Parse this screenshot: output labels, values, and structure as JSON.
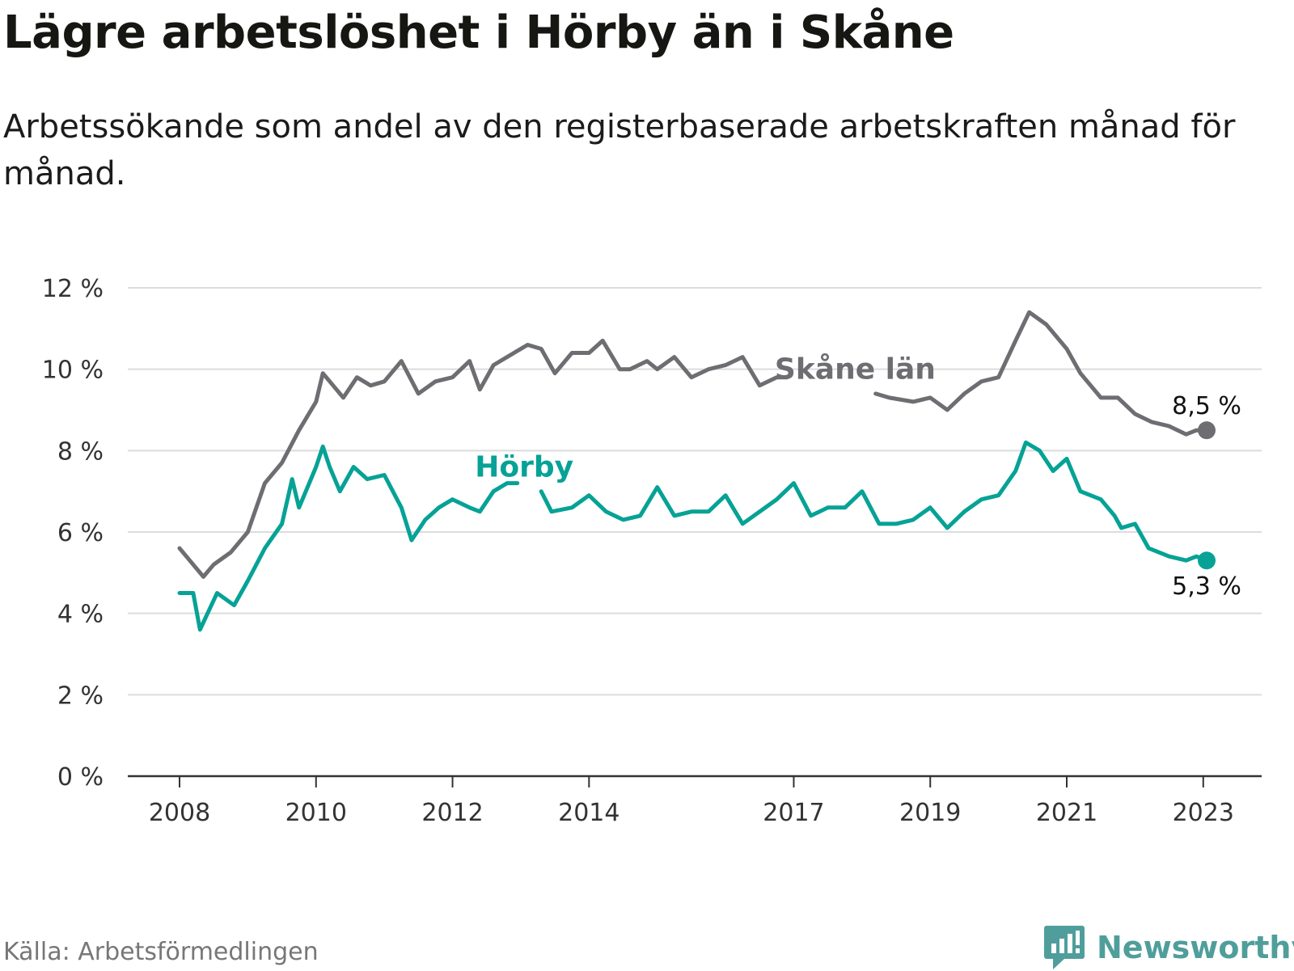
{
  "title": "Lägre arbetslöshet i Hörby än i Skåne",
  "subtitle": "Arbetssökande som andel av den registerbaserade arbetskraften månad för månad.",
  "source": "Källa: Arbetsförmedlingen",
  "brand": {
    "name": "Newsworthy",
    "icon": "newsworthy-logo-icon",
    "color": "#4f9e9b"
  },
  "chart_data": {
    "type": "line",
    "title": "Lägre arbetslöshet i Hörby än i Skåne",
    "xlabel": "",
    "ylabel": "",
    "xlim": [
      2008,
      2023.5
    ],
    "ylim": [
      0,
      12
    ],
    "yticks": [
      0,
      2,
      4,
      6,
      8,
      10,
      12
    ],
    "ytick_labels": [
      "0 %",
      "2 %",
      "4 %",
      "6 %",
      "8 %",
      "10 %",
      "12 %"
    ],
    "xticks": [
      2008,
      2010,
      2012,
      2014,
      2017,
      2019,
      2021,
      2023
    ],
    "xtick_labels": [
      "2008",
      "2010",
      "2012",
      "2014",
      "2017",
      "2019",
      "2021",
      "2023"
    ],
    "grid": true,
    "series": [
      {
        "name": "Skåne län",
        "color": "#6e6d72",
        "gap_after_index": 9,
        "points": [
          [
            2008.0,
            5.6
          ],
          [
            2008.2,
            5.2
          ],
          [
            2008.35,
            4.9
          ],
          [
            2008.5,
            5.2
          ],
          [
            2008.75,
            5.5
          ],
          [
            2009.0,
            6.0
          ],
          [
            2009.25,
            7.2
          ],
          [
            2009.5,
            7.7
          ],
          [
            2009.75,
            8.5
          ],
          [
            2010.0,
            9.2
          ],
          [
            2010.1,
            9.9
          ],
          [
            2010.25,
            9.6
          ],
          [
            2010.4,
            9.3
          ],
          [
            2010.6,
            9.8
          ],
          [
            2010.8,
            9.6
          ],
          [
            2011.0,
            9.7
          ],
          [
            2011.25,
            10.2
          ],
          [
            2011.5,
            9.4
          ],
          [
            2011.75,
            9.7
          ],
          [
            2012.0,
            9.8
          ],
          [
            2012.25,
            10.2
          ],
          [
            2012.4,
            9.5
          ],
          [
            2012.6,
            10.1
          ],
          [
            2012.9,
            10.4
          ],
          [
            2013.1,
            10.6
          ],
          [
            2013.3,
            10.5
          ],
          [
            2013.5,
            9.9
          ],
          [
            2013.75,
            10.4
          ],
          [
            2014.0,
            10.4
          ],
          [
            2014.2,
            10.7
          ],
          [
            2014.45,
            10.0
          ],
          [
            2014.6,
            10.0
          ],
          [
            2014.85,
            10.2
          ],
          [
            2015.0,
            10.0
          ],
          [
            2015.25,
            10.3
          ],
          [
            2015.5,
            9.8
          ],
          [
            2015.75,
            10.0
          ],
          [
            2016.0,
            10.1
          ],
          [
            2016.25,
            10.3
          ],
          [
            2016.5,
            9.6
          ],
          [
            2016.75,
            9.8
          ],
          [
            2016.9,
            9.8
          ],
          [
            2018.2,
            9.4
          ],
          [
            2018.4,
            9.3
          ],
          [
            2018.75,
            9.2
          ],
          [
            2019.0,
            9.3
          ],
          [
            2019.25,
            9.0
          ],
          [
            2019.5,
            9.4
          ],
          [
            2019.75,
            9.7
          ],
          [
            2020.0,
            9.8
          ],
          [
            2020.25,
            10.7
          ],
          [
            2020.45,
            11.4
          ],
          [
            2020.7,
            11.1
          ],
          [
            2021.0,
            10.5
          ],
          [
            2021.2,
            9.9
          ],
          [
            2021.5,
            9.3
          ],
          [
            2021.75,
            9.3
          ],
          [
            2022.0,
            8.9
          ],
          [
            2022.25,
            8.7
          ],
          [
            2022.5,
            8.6
          ],
          [
            2022.75,
            8.4
          ],
          [
            2022.9,
            8.5
          ],
          [
            2023.05,
            8.5
          ]
        ]
      },
      {
        "name": "Hörby",
        "color": "#06a296",
        "gap_after_index": 9,
        "points": [
          [
            2008.0,
            4.5
          ],
          [
            2008.2,
            4.5
          ],
          [
            2008.3,
            3.6
          ],
          [
            2008.55,
            4.5
          ],
          [
            2008.8,
            4.2
          ],
          [
            2009.0,
            4.8
          ],
          [
            2009.25,
            5.6
          ],
          [
            2009.5,
            6.2
          ],
          [
            2009.65,
            7.3
          ],
          [
            2009.75,
            6.6
          ],
          [
            2010.0,
            7.6
          ],
          [
            2010.1,
            8.1
          ],
          [
            2010.2,
            7.6
          ],
          [
            2010.35,
            7.0
          ],
          [
            2010.55,
            7.6
          ],
          [
            2010.75,
            7.3
          ],
          [
            2011.0,
            7.4
          ],
          [
            2011.25,
            6.6
          ],
          [
            2011.4,
            5.8
          ],
          [
            2011.6,
            6.3
          ],
          [
            2011.8,
            6.6
          ],
          [
            2012.0,
            6.8
          ],
          [
            2012.25,
            6.6
          ],
          [
            2012.4,
            6.5
          ],
          [
            2012.6,
            7.0
          ],
          [
            2012.8,
            7.2
          ],
          [
            2012.95,
            7.2
          ],
          [
            2013.3,
            7.0
          ],
          [
            2013.45,
            6.5
          ],
          [
            2013.75,
            6.6
          ],
          [
            2014.0,
            6.9
          ],
          [
            2014.25,
            6.5
          ],
          [
            2014.5,
            6.3
          ],
          [
            2014.75,
            6.4
          ],
          [
            2015.0,
            7.1
          ],
          [
            2015.25,
            6.4
          ],
          [
            2015.5,
            6.5
          ],
          [
            2015.75,
            6.5
          ],
          [
            2016.0,
            6.9
          ],
          [
            2016.25,
            6.2
          ],
          [
            2016.5,
            6.5
          ],
          [
            2016.75,
            6.8
          ],
          [
            2017.0,
            7.2
          ],
          [
            2017.25,
            6.4
          ],
          [
            2017.5,
            6.6
          ],
          [
            2017.75,
            6.6
          ],
          [
            2018.0,
            7.0
          ],
          [
            2018.25,
            6.2
          ],
          [
            2018.5,
            6.2
          ],
          [
            2018.75,
            6.3
          ],
          [
            2019.0,
            6.6
          ],
          [
            2019.25,
            6.1
          ],
          [
            2019.5,
            6.5
          ],
          [
            2019.75,
            6.8
          ],
          [
            2020.0,
            6.9
          ],
          [
            2020.25,
            7.5
          ],
          [
            2020.4,
            8.2
          ],
          [
            2020.6,
            8.0
          ],
          [
            2020.8,
            7.5
          ],
          [
            2021.0,
            7.8
          ],
          [
            2021.2,
            7.0
          ],
          [
            2021.5,
            6.8
          ],
          [
            2021.7,
            6.4
          ],
          [
            2021.8,
            6.1
          ],
          [
            2022.0,
            6.2
          ],
          [
            2022.2,
            5.6
          ],
          [
            2022.5,
            5.4
          ],
          [
            2022.75,
            5.3
          ],
          [
            2022.9,
            5.4
          ],
          [
            2023.05,
            5.3
          ]
        ]
      }
    ],
    "series_labels": [
      {
        "series": "Skåne län",
        "text": "Skåne län",
        "x": 2017.9,
        "y": 10.0
      },
      {
        "series": "Hörby",
        "text": "Hörby",
        "x": 2013.05,
        "y": 7.6
      }
    ],
    "end_labels": [
      {
        "series": "Skåne län",
        "text": "8,5 %",
        "value": 8.5
      },
      {
        "series": "Hörby",
        "text": "5,3 %",
        "value": 5.3
      }
    ]
  }
}
